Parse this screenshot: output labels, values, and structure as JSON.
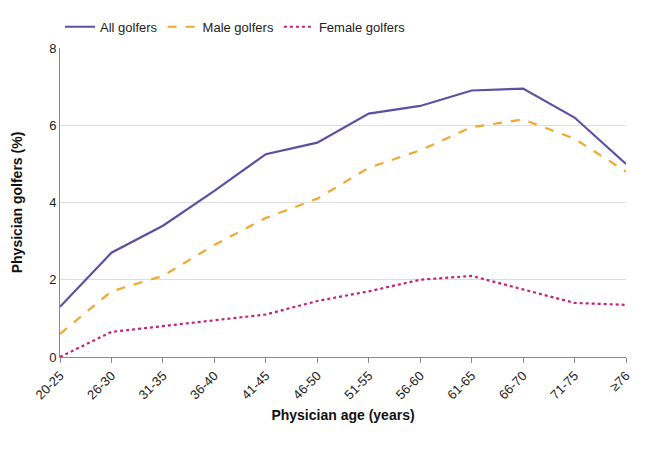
{
  "chart_data": {
    "type": "line",
    "x_label": "Physician age (years)",
    "y_label": "Physician golfers (%)",
    "categories": [
      "20-25",
      "26-30",
      "31-35",
      "36-40",
      "41-45",
      "46-50",
      "51-55",
      "56-60",
      "61-65",
      "66-70",
      "71-75",
      "≥76"
    ],
    "series": [
      {
        "name": "All golfers",
        "color": "#5e4fa2",
        "line_style": "solid",
        "values": [
          1.3,
          2.7,
          3.4,
          4.3,
          5.25,
          5.55,
          6.3,
          6.5,
          6.9,
          6.95,
          6.2,
          5.0
        ]
      },
      {
        "name": "Male golfers",
        "color": "#f0a830",
        "line_style": "dash",
        "values": [
          0.6,
          1.7,
          2.1,
          2.9,
          3.6,
          4.1,
          4.9,
          5.35,
          5.95,
          6.15,
          5.65,
          4.8
        ]
      },
      {
        "name": "Female golfers",
        "color": "#c0237a",
        "line_style": "dot",
        "values": [
          0.0,
          0.65,
          0.8,
          0.95,
          1.1,
          1.45,
          1.7,
          2.0,
          2.1,
          1.75,
          1.4,
          1.35
        ]
      }
    ],
    "ylim": [
      0,
      8
    ],
    "yticks": [
      0,
      2,
      4,
      6,
      8
    ],
    "grid": true,
    "legend": "top"
  }
}
